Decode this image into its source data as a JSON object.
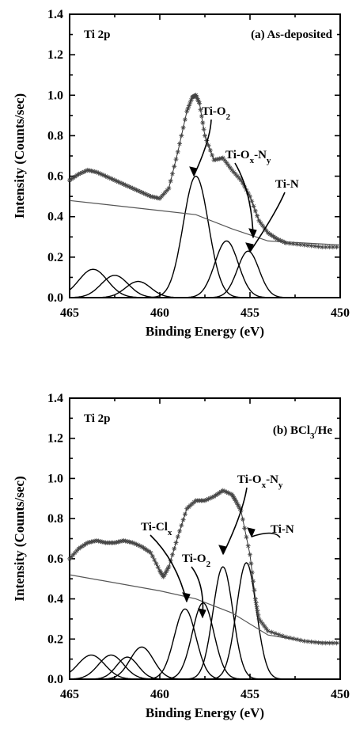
{
  "chart_data": [
    {
      "type": "line",
      "panel_label": "(a) As-deposited",
      "core_level": "Ti 2p",
      "xlabel": "Binding Energy (eV)",
      "ylabel": "Intensity (Counts/sec)",
      "xlim": [
        465,
        450
      ],
      "ylim": [
        0.0,
        1.4
      ],
      "x_ticks": [
        "465",
        "460",
        "455",
        "450"
      ],
      "y_ticks": [
        "0.0",
        "0.2",
        "0.4",
        "0.6",
        "0.8",
        "1.0",
        "1.2",
        "1.4"
      ],
      "peak_labels": [
        {
          "text": "Ti-O",
          "sub": "2",
          "sub2": ""
        },
        {
          "text": "Ti-O",
          "sub": "x",
          "mid": "-N",
          "sub2": "y"
        },
        {
          "text": "Ti-N",
          "sub": "",
          "sub2": ""
        }
      ],
      "components": [
        {
          "center": 463.7,
          "height": 0.14,
          "width": 0.8
        },
        {
          "center": 462.5,
          "height": 0.11,
          "width": 0.75
        },
        {
          "center": 461.2,
          "height": 0.08,
          "width": 0.7
        },
        {
          "center": 458.0,
          "height": 0.6,
          "width": 0.7
        },
        {
          "center": 456.3,
          "height": 0.28,
          "width": 0.65
        },
        {
          "center": 455.1,
          "height": 0.23,
          "width": 0.6
        }
      ],
      "background": {
        "x": [
          465,
          460,
          458,
          456,
          454,
          450
        ],
        "y": [
          0.48,
          0.43,
          0.41,
          0.34,
          0.28,
          0.26
        ]
      },
      "measured": {
        "x": [
          465,
          464.5,
          464,
          463.5,
          463,
          462.5,
          462,
          461.5,
          461,
          460.5,
          460,
          459.5,
          459,
          458.5,
          458.2,
          458,
          457.8,
          457.5,
          457,
          456.5,
          456,
          455.5,
          455,
          454.5,
          454,
          453.5,
          453,
          452,
          451,
          450
        ],
        "y": [
          0.58,
          0.61,
          0.63,
          0.62,
          0.6,
          0.58,
          0.56,
          0.54,
          0.52,
          0.5,
          0.49,
          0.54,
          0.72,
          0.92,
          0.99,
          1.0,
          0.96,
          0.8,
          0.68,
          0.69,
          0.63,
          0.58,
          0.5,
          0.38,
          0.32,
          0.29,
          0.27,
          0.26,
          0.25,
          0.25
        ]
      }
    },
    {
      "type": "line",
      "panel_label": "(b) BCl",
      "panel_label_sub": "3",
      "panel_label_tail": "/He",
      "core_level": "Ti 2p",
      "xlabel": "Binding Energy (eV)",
      "ylabel": "Intensity (Counts/sec)",
      "xlim": [
        465,
        450
      ],
      "ylim": [
        0.0,
        1.4
      ],
      "x_ticks": [
        "465",
        "460",
        "455",
        "450"
      ],
      "y_ticks": [
        "0.0",
        "0.2",
        "0.4",
        "0.6",
        "0.8",
        "1.0",
        "1.2",
        "1.4"
      ],
      "peak_labels": [
        {
          "text": "Ti-Cl",
          "sub": "x",
          "sub2": ""
        },
        {
          "text": "Ti-O",
          "sub": "2",
          "sub2": ""
        },
        {
          "text": "Ti-O",
          "sub": "x",
          "mid": "-N",
          "sub2": "y"
        },
        {
          "text": "Ti-N",
          "sub": "",
          "sub2": ""
        }
      ],
      "components": [
        {
          "center": 463.8,
          "height": 0.12,
          "width": 0.75
        },
        {
          "center": 462.7,
          "height": 0.12,
          "width": 0.7
        },
        {
          "center": 461.8,
          "height": 0.11,
          "width": 0.6
        },
        {
          "center": 461.0,
          "height": 0.16,
          "width": 0.65
        },
        {
          "center": 458.6,
          "height": 0.35,
          "width": 0.6
        },
        {
          "center": 457.6,
          "height": 0.38,
          "width": 0.6
        },
        {
          "center": 456.5,
          "height": 0.56,
          "width": 0.55
        },
        {
          "center": 455.2,
          "height": 0.58,
          "width": 0.55
        }
      ],
      "background": {
        "x": [
          465,
          460,
          458,
          456,
          454,
          452,
          450
        ],
        "y": [
          0.52,
          0.44,
          0.4,
          0.33,
          0.22,
          0.19,
          0.18
        ]
      },
      "measured": {
        "x": [
          465,
          464.5,
          464,
          463.5,
          463,
          462.5,
          462,
          461.5,
          461,
          460.5,
          460,
          459.8,
          459.5,
          459,
          458.5,
          458,
          457.5,
          457,
          456.5,
          456,
          455.8,
          455.5,
          455,
          454.7,
          454.5,
          454,
          453,
          452,
          451,
          450
        ],
        "y": [
          0.6,
          0.65,
          0.68,
          0.69,
          0.68,
          0.68,
          0.69,
          0.68,
          0.66,
          0.63,
          0.54,
          0.51,
          0.56,
          0.71,
          0.85,
          0.89,
          0.89,
          0.91,
          0.94,
          0.92,
          0.89,
          0.84,
          0.62,
          0.4,
          0.3,
          0.24,
          0.21,
          0.19,
          0.18,
          0.18
        ]
      }
    }
  ]
}
